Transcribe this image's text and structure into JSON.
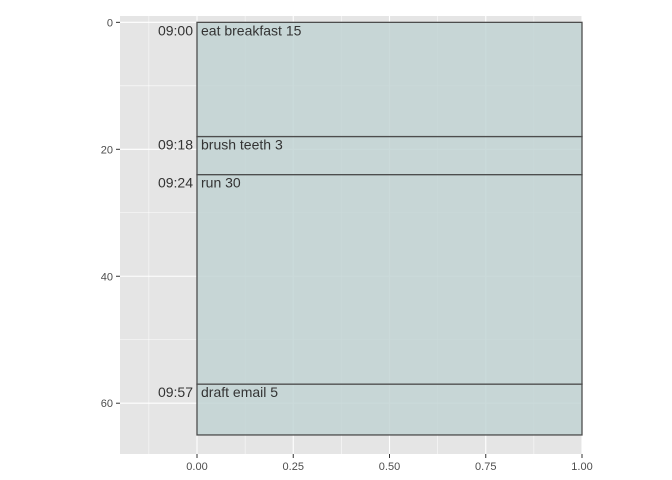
{
  "chart_data": {
    "type": "timeline",
    "x_ticks": [
      "0.00",
      "0.25",
      "0.50",
      "0.75",
      "1.00"
    ],
    "x_tick_values": [
      0,
      0.25,
      0.5,
      0.75,
      1.0
    ],
    "y_ticks": [
      "0",
      "20",
      "40",
      "60"
    ],
    "y_tick_values": [
      0,
      20,
      40,
      60
    ],
    "xlim": [
      -0.2,
      1.0
    ],
    "ylim": [
      -1,
      68
    ],
    "y_reversed": true,
    "grid": true,
    "colors": {
      "panel_background": "#e5e5e5",
      "grid": "#ffffff",
      "fill": "#c2d4d4",
      "outline": "#4d4d4d",
      "label": "#333333"
    },
    "events": [
      {
        "time": "09:00",
        "label": "eat breakfast 15",
        "start": 0,
        "end": 18
      },
      {
        "time": "09:18",
        "label": "brush teeth 3",
        "start": 18,
        "end": 24
      },
      {
        "time": "09:24",
        "label": "run 30",
        "start": 24,
        "end": 57
      },
      {
        "time": "09:57",
        "label": "draft email 5",
        "start": 57,
        "end": 65
      }
    ]
  }
}
